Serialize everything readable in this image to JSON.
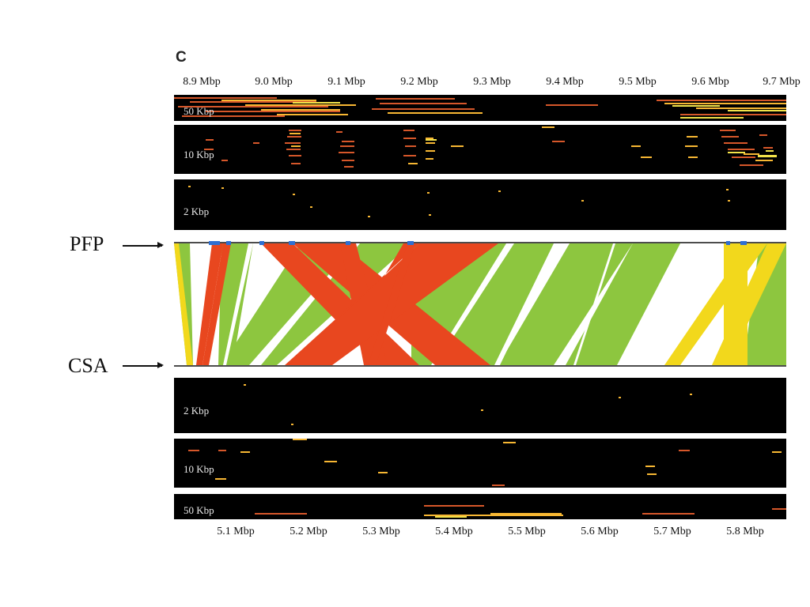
{
  "panel_letter": "C",
  "top_axis": {
    "ticks": [
      "8.9 Mbp",
      "9.0 Mbp",
      "9.1 Mbp",
      "9.2 Mbp",
      "9.3 Mbp",
      "9.4 Mbp",
      "9.5 Mbp",
      "9.6 Mbp",
      "9.7 Mbp"
    ]
  },
  "bottom_axis": {
    "ticks": [
      "5.1 Mbp",
      "5.2 Mbp",
      "5.3 Mbp",
      "5.4 Mbp",
      "5.5 Mbp",
      "5.6 Mbp",
      "5.7 Mbp",
      "5.8 Mbp"
    ]
  },
  "top_tracks": [
    {
      "label": "50 Kbp"
    },
    {
      "label": "10 Kbp"
    },
    {
      "label": "2 Kbp"
    }
  ],
  "bottom_tracks": [
    {
      "label": "2 Kbp"
    },
    {
      "label": "10 Kbp"
    },
    {
      "label": "50 Kbp"
    }
  ],
  "genomes": {
    "top": "PFP",
    "bottom": "CSA"
  },
  "colors": {
    "collinear": "#8dc63f",
    "inverted": "#e8471f",
    "duplicated": "#f2d81c",
    "track_bg": "#000000",
    "gene_marker": "#2f6fd1"
  }
}
